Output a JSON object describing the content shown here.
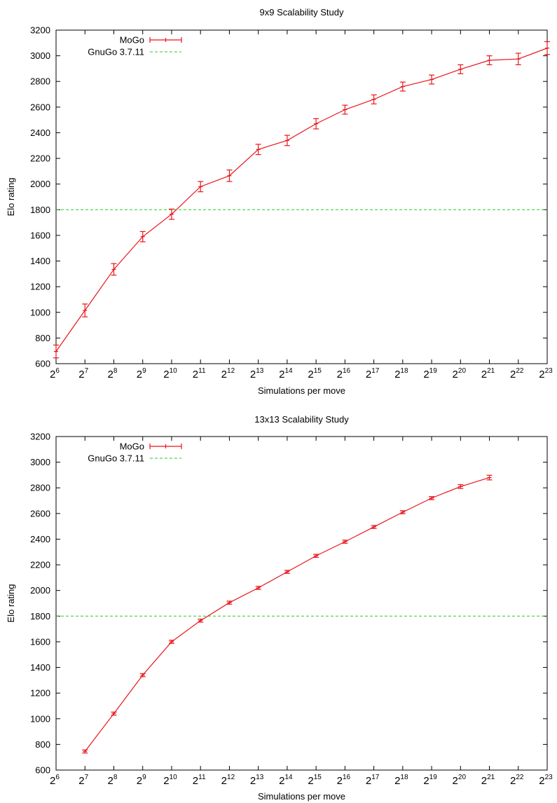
{
  "colors": {
    "mogo": "#e8151b",
    "gnugo": "#22cc22",
    "axis": "#000000"
  },
  "chart_data": [
    {
      "type": "line",
      "title": "9x9 Scalability Study",
      "xlabel": "Simulations per move",
      "ylabel": "Elo rating",
      "x_scale": "log2",
      "xlim": [
        6,
        23
      ],
      "ylim": [
        600,
        3200
      ],
      "x_ticks": [
        {
          "base": "2",
          "exp": "6"
        },
        {
          "base": "2",
          "exp": "7"
        },
        {
          "base": "2",
          "exp": "8"
        },
        {
          "base": "2",
          "exp": "9"
        },
        {
          "base": "2",
          "exp": "10"
        },
        {
          "base": "2",
          "exp": "11"
        },
        {
          "base": "2",
          "exp": "12"
        },
        {
          "base": "2",
          "exp": "13"
        },
        {
          "base": "2",
          "exp": "14"
        },
        {
          "base": "2",
          "exp": "15"
        },
        {
          "base": "2",
          "exp": "16"
        },
        {
          "base": "2",
          "exp": "17"
        },
        {
          "base": "2",
          "exp": "18"
        },
        {
          "base": "2",
          "exp": "19"
        },
        {
          "base": "2",
          "exp": "20"
        },
        {
          "base": "2",
          "exp": "21"
        },
        {
          "base": "2",
          "exp": "22"
        },
        {
          "base": "2",
          "exp": "23"
        }
      ],
      "y_ticks": [
        "600",
        "800",
        "1000",
        "1200",
        "1400",
        "1600",
        "1800",
        "2000",
        "2200",
        "2400",
        "2600",
        "2800",
        "3000",
        "3200"
      ],
      "legend": [
        "MoGo",
        "GnuGo 3.7.11"
      ],
      "legend_position": "top-left",
      "series": [
        {
          "name": "MoGo",
          "x_exp": [
            6,
            7,
            8,
            9,
            10,
            11,
            12,
            13,
            14,
            15,
            16,
            17,
            18,
            19,
            20,
            21,
            22,
            23
          ],
          "values": [
            695,
            1015,
            1335,
            1590,
            1765,
            1980,
            2065,
            2270,
            2340,
            2470,
            2580,
            2660,
            2760,
            2815,
            2895,
            2965,
            2975,
            3060
          ],
          "err": [
            50,
            50,
            45,
            40,
            40,
            40,
            45,
            40,
            40,
            40,
            35,
            35,
            35,
            35,
            35,
            35,
            45,
            50
          ]
        }
      ],
      "reference_lines": [
        {
          "name": "GnuGo 3.7.11",
          "y": 1800
        }
      ]
    },
    {
      "type": "line",
      "title": "13x13 Scalability Study",
      "xlabel": "Simulations per move",
      "ylabel": "Elo rating",
      "x_scale": "log2",
      "xlim": [
        6,
        23
      ],
      "ylim": [
        600,
        3200
      ],
      "x_ticks": [
        {
          "base": "2",
          "exp": "6"
        },
        {
          "base": "2",
          "exp": "7"
        },
        {
          "base": "2",
          "exp": "8"
        },
        {
          "base": "2",
          "exp": "9"
        },
        {
          "base": "2",
          "exp": "10"
        },
        {
          "base": "2",
          "exp": "11"
        },
        {
          "base": "2",
          "exp": "12"
        },
        {
          "base": "2",
          "exp": "13"
        },
        {
          "base": "2",
          "exp": "14"
        },
        {
          "base": "2",
          "exp": "15"
        },
        {
          "base": "2",
          "exp": "16"
        },
        {
          "base": "2",
          "exp": "17"
        },
        {
          "base": "2",
          "exp": "18"
        },
        {
          "base": "2",
          "exp": "19"
        },
        {
          "base": "2",
          "exp": "20"
        },
        {
          "base": "2",
          "exp": "21"
        },
        {
          "base": "2",
          "exp": "22"
        },
        {
          "base": "2",
          "exp": "23"
        }
      ],
      "y_ticks": [
        "600",
        "800",
        "1000",
        "1200",
        "1400",
        "1600",
        "1800",
        "2000",
        "2200",
        "2400",
        "2600",
        "2800",
        "3000",
        "3200"
      ],
      "legend": [
        "MoGo",
        "GnuGo 3.7.11"
      ],
      "legend_position": "top-left",
      "series": [
        {
          "name": "MoGo",
          "x_exp": [
            7,
            8,
            9,
            10,
            11,
            12,
            13,
            14,
            15,
            16,
            17,
            18,
            19,
            20,
            21
          ],
          "values": [
            745,
            1040,
            1340,
            1600,
            1765,
            1905,
            2020,
            2145,
            2270,
            2380,
            2495,
            2610,
            2720,
            2810,
            2880
          ],
          "err": [
            12,
            12,
            12,
            12,
            12,
            12,
            12,
            12,
            12,
            12,
            12,
            12,
            12,
            15,
            18
          ]
        }
      ],
      "reference_lines": [
        {
          "name": "GnuGo 3.7.11",
          "y": 1800
        }
      ]
    }
  ]
}
